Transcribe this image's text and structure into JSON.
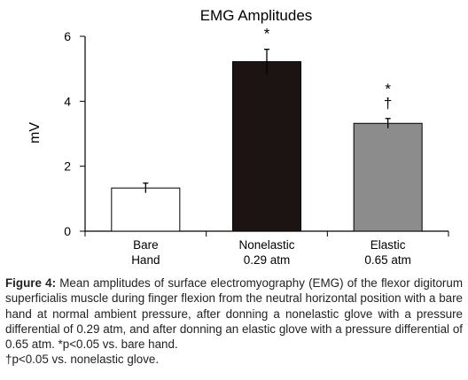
{
  "chart_data": {
    "type": "bar",
    "title": "EMG Amplitudes",
    "ylabel": "mV",
    "xlabel": "",
    "ylim": [
      0,
      6
    ],
    "yticks": [
      "0",
      "2",
      "4",
      "6"
    ],
    "categories": [
      [
        "Bare",
        "Hand"
      ],
      [
        "Nonelastic",
        "0.29 atm"
      ],
      [
        "Elastic",
        "0.65 atm"
      ]
    ],
    "values": [
      1.33,
      5.22,
      3.32
    ],
    "errors": [
      0.15,
      0.38,
      0.15
    ],
    "bar_colors": [
      "#ffffff",
      "#1c1413",
      "#8b8c8b"
    ],
    "annotations": [
      [],
      [
        "*"
      ],
      [
        "*",
        "†"
      ]
    ],
    "grid": false,
    "legend": "none"
  },
  "caption": {
    "label": "Figure 4:",
    "text": "Mean amplitudes of surface electromyography (EMG) of the flexor digitorum superficialis muscle during finger flexion from the neutral horizontal position with a bare hand at normal ambient pressure, after donning a nonelastic glove with a pressure differential of 0.29 atm, and after donning an elastic glove with a pressure differential of 0.65 atm. *p<0.05 vs. bare hand.",
    "text2": "†p<0.05 vs. nonelastic glove."
  }
}
